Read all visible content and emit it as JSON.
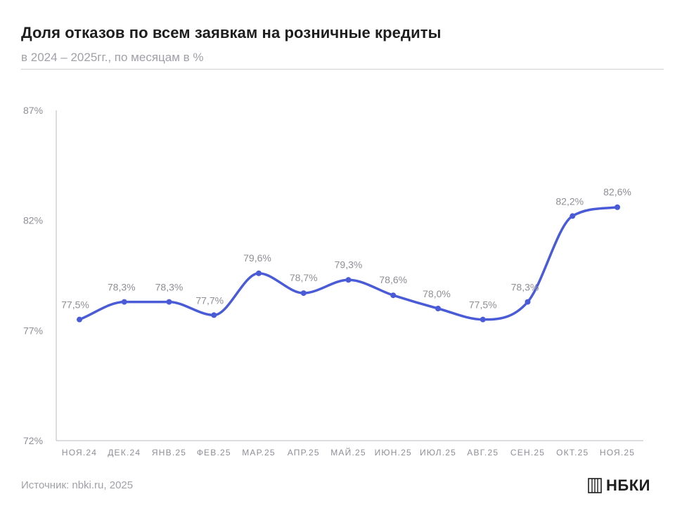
{
  "header": {
    "title": "Доля отказов по всем заявкам на розничные кредиты",
    "subtitle": "в 2024 – 2025гг., по месяцам в %"
  },
  "footer": {
    "source": "Источник: nbki.ru, 2025",
    "logo_text": "НБКИ"
  },
  "colors": {
    "line": "#4a5bd8",
    "axis": "#b8b8c0",
    "label": "#8e8e96"
  },
  "chart_data": {
    "type": "line",
    "title": "Доля отказов по всем заявкам на розничные кредиты",
    "subtitle": "в 2024 – 2025гг., по месяцам в %",
    "xlabel": "",
    "ylabel": "",
    "categories": [
      "НОЯ.24",
      "ДЕК.24",
      "ЯНВ.25",
      "ФЕВ.25",
      "МАР.25",
      "АПР.25",
      "МАЙ.25",
      "ИЮН.25",
      "ИЮЛ.25",
      "АВГ.25",
      "СЕН.25",
      "ОКТ.25",
      "НОЯ.25"
    ],
    "series": [
      {
        "name": "Доля отказов",
        "values": [
          77.5,
          78.3,
          78.3,
          77.7,
          79.6,
          78.7,
          79.3,
          78.6,
          78.0,
          77.5,
          78.3,
          82.2,
          82.6
        ],
        "labels": [
          "77,5%",
          "78,3%",
          "78,3%",
          "77,7%",
          "79,6%",
          "78,7%",
          "79,3%",
          "78,6%",
          "78,0%",
          "77,5%",
          "78,3%",
          "82,2%",
          "82,6%"
        ]
      }
    ],
    "yticks": [
      72,
      77,
      82,
      87
    ],
    "ytick_labels": [
      "72%",
      "77%",
      "82%",
      "87%"
    ],
    "ylim": [
      72,
      87
    ],
    "grid": false,
    "legend": "none"
  }
}
